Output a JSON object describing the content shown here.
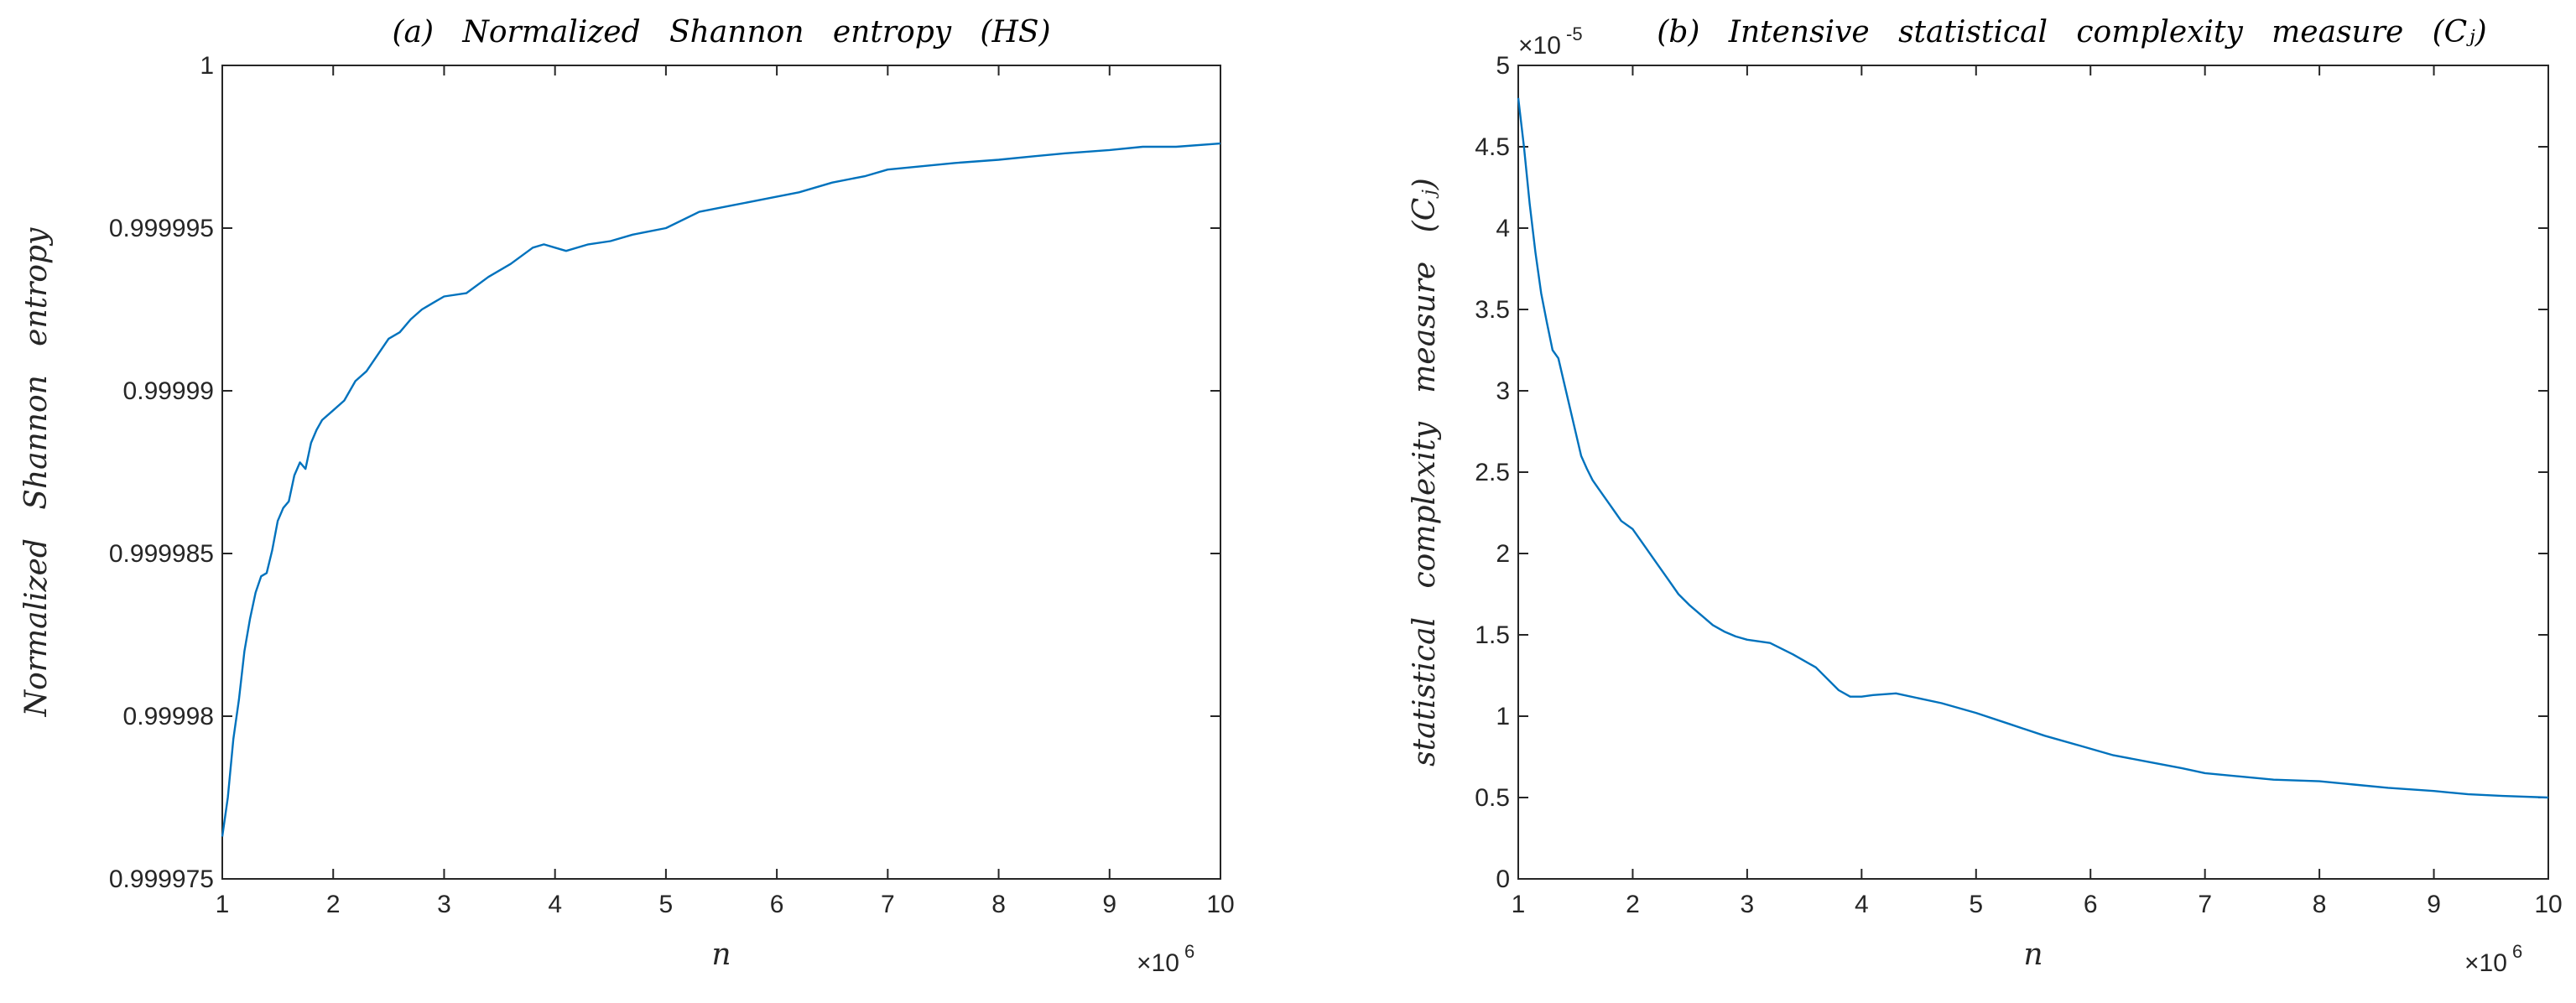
{
  "chart_data": [
    {
      "type": "line",
      "title": "(a)   Normalized   Shannon   entropy   (HS)",
      "xlabel": "n",
      "ylabel": "Normalized   Shannon   entropy",
      "x_multiplier_label": "×10",
      "x_multiplier_exponent": "6",
      "y_multiplier_label": "",
      "y_multiplier_exponent": "",
      "xlim": [
        1,
        10
      ],
      "ylim": [
        0.999975,
        1
      ],
      "xticks": [
        1,
        2,
        3,
        4,
        5,
        6,
        7,
        8,
        9,
        10
      ],
      "xtick_labels": [
        "1",
        "2",
        "3",
        "4",
        "5",
        "6",
        "7",
        "8",
        "9",
        "10"
      ],
      "yticks": [
        0.999975,
        0.99998,
        0.999985,
        0.99999,
        0.999995,
        1
      ],
      "ytick_labels": [
        "0.999975",
        "0.99998",
        "0.999985",
        "0.99999",
        "0.999995",
        "1"
      ],
      "series": [
        {
          "name": "HS",
          "color": "#0072BD",
          "x": [
            1.0,
            1.05,
            1.1,
            1.15,
            1.2,
            1.25,
            1.3,
            1.35,
            1.4,
            1.45,
            1.5,
            1.55,
            1.6,
            1.65,
            1.7,
            1.75,
            1.8,
            1.85,
            1.9,
            2.0,
            2.1,
            2.2,
            2.3,
            2.4,
            2.5,
            2.6,
            2.7,
            2.8,
            2.9,
            3.0,
            3.2,
            3.4,
            3.6,
            3.8,
            3.9,
            4.0,
            4.1,
            4.3,
            4.5,
            4.7,
            5.0,
            5.3,
            5.6,
            5.9,
            6.2,
            6.5,
            6.8,
            7.0,
            7.3,
            7.6,
            8.0,
            8.3,
            8.6,
            9.0,
            9.3,
            9.6,
            10.0
          ],
          "y": [
            0.9999763,
            0.9999775,
            0.9999793,
            0.9999805,
            0.999982,
            0.999983,
            0.9999838,
            0.9999843,
            0.9999844,
            0.9999851,
            0.999986,
            0.9999864,
            0.9999866,
            0.9999874,
            0.9999878,
            0.9999876,
            0.9999884,
            0.9999888,
            0.9999891,
            0.9999894,
            0.9999897,
            0.9999903,
            0.9999906,
            0.9999911,
            0.9999916,
            0.9999918,
            0.9999922,
            0.9999925,
            0.9999927,
            0.9999929,
            0.999993,
            0.9999935,
            0.9999939,
            0.9999944,
            0.9999945,
            0.9999944,
            0.9999943,
            0.9999945,
            0.9999946,
            0.9999948,
            0.999995,
            0.9999955,
            0.9999957,
            0.9999959,
            0.9999961,
            0.9999964,
            0.9999966,
            0.9999968,
            0.9999969,
            0.999997,
            0.9999971,
            0.9999972,
            0.9999973,
            0.9999974,
            0.9999975,
            0.9999975,
            0.9999976
          ]
        }
      ]
    },
    {
      "type": "line",
      "title": "(b)   Intensive   statistical   complexity   measure   (Cⱼ)",
      "xlabel": "n",
      "ylabel": "statistical   complexity   measure   (Cⱼ)",
      "x_multiplier_label": "×10",
      "x_multiplier_exponent": "6",
      "y_multiplier_label": "×10",
      "y_multiplier_exponent": "-5",
      "xlim": [
        1,
        10
      ],
      "ylim": [
        0,
        5
      ],
      "xticks": [
        1,
        2,
        3,
        4,
        5,
        6,
        7,
        8,
        9,
        10
      ],
      "xtick_labels": [
        "1",
        "2",
        "3",
        "4",
        "5",
        "6",
        "7",
        "8",
        "9",
        "10"
      ],
      "yticks": [
        0,
        0.5,
        1,
        1.5,
        2,
        2.5,
        3,
        3.5,
        4,
        4.5,
        5
      ],
      "ytick_labels": [
        "0",
        "0.5",
        "1",
        "1.5",
        "2",
        "2.5",
        "3",
        "3.5",
        "4",
        "4.5",
        "5"
      ],
      "series": [
        {
          "name": "Cj",
          "color": "#0072BD",
          "x": [
            1.0,
            1.05,
            1.1,
            1.15,
            1.2,
            1.25,
            1.3,
            1.35,
            1.4,
            1.45,
            1.5,
            1.55,
            1.6,
            1.65,
            1.7,
            1.75,
            1.8,
            1.85,
            1.9,
            2.0,
            2.1,
            2.2,
            2.3,
            2.4,
            2.5,
            2.6,
            2.7,
            2.8,
            2.9,
            3.0,
            3.2,
            3.4,
            3.6,
            3.8,
            3.9,
            4.0,
            4.1,
            4.3,
            4.5,
            4.7,
            5.0,
            5.3,
            5.6,
            5.9,
            6.2,
            6.5,
            6.8,
            7.0,
            7.3,
            7.6,
            8.0,
            8.3,
            8.6,
            9.0,
            9.3,
            9.6,
            10.0
          ],
          "y": [
            4.8,
            4.5,
            4.15,
            3.85,
            3.6,
            3.42,
            3.25,
            3.2,
            3.05,
            2.9,
            2.75,
            2.6,
            2.52,
            2.45,
            2.4,
            2.35,
            2.3,
            2.25,
            2.2,
            2.15,
            2.05,
            1.95,
            1.85,
            1.75,
            1.68,
            1.62,
            1.56,
            1.52,
            1.49,
            1.47,
            1.45,
            1.38,
            1.3,
            1.16,
            1.12,
            1.12,
            1.13,
            1.14,
            1.11,
            1.08,
            1.02,
            0.95,
            0.88,
            0.82,
            0.76,
            0.72,
            0.68,
            0.65,
            0.63,
            0.61,
            0.6,
            0.58,
            0.56,
            0.54,
            0.52,
            0.51,
            0.5
          ]
        }
      ]
    }
  ]
}
